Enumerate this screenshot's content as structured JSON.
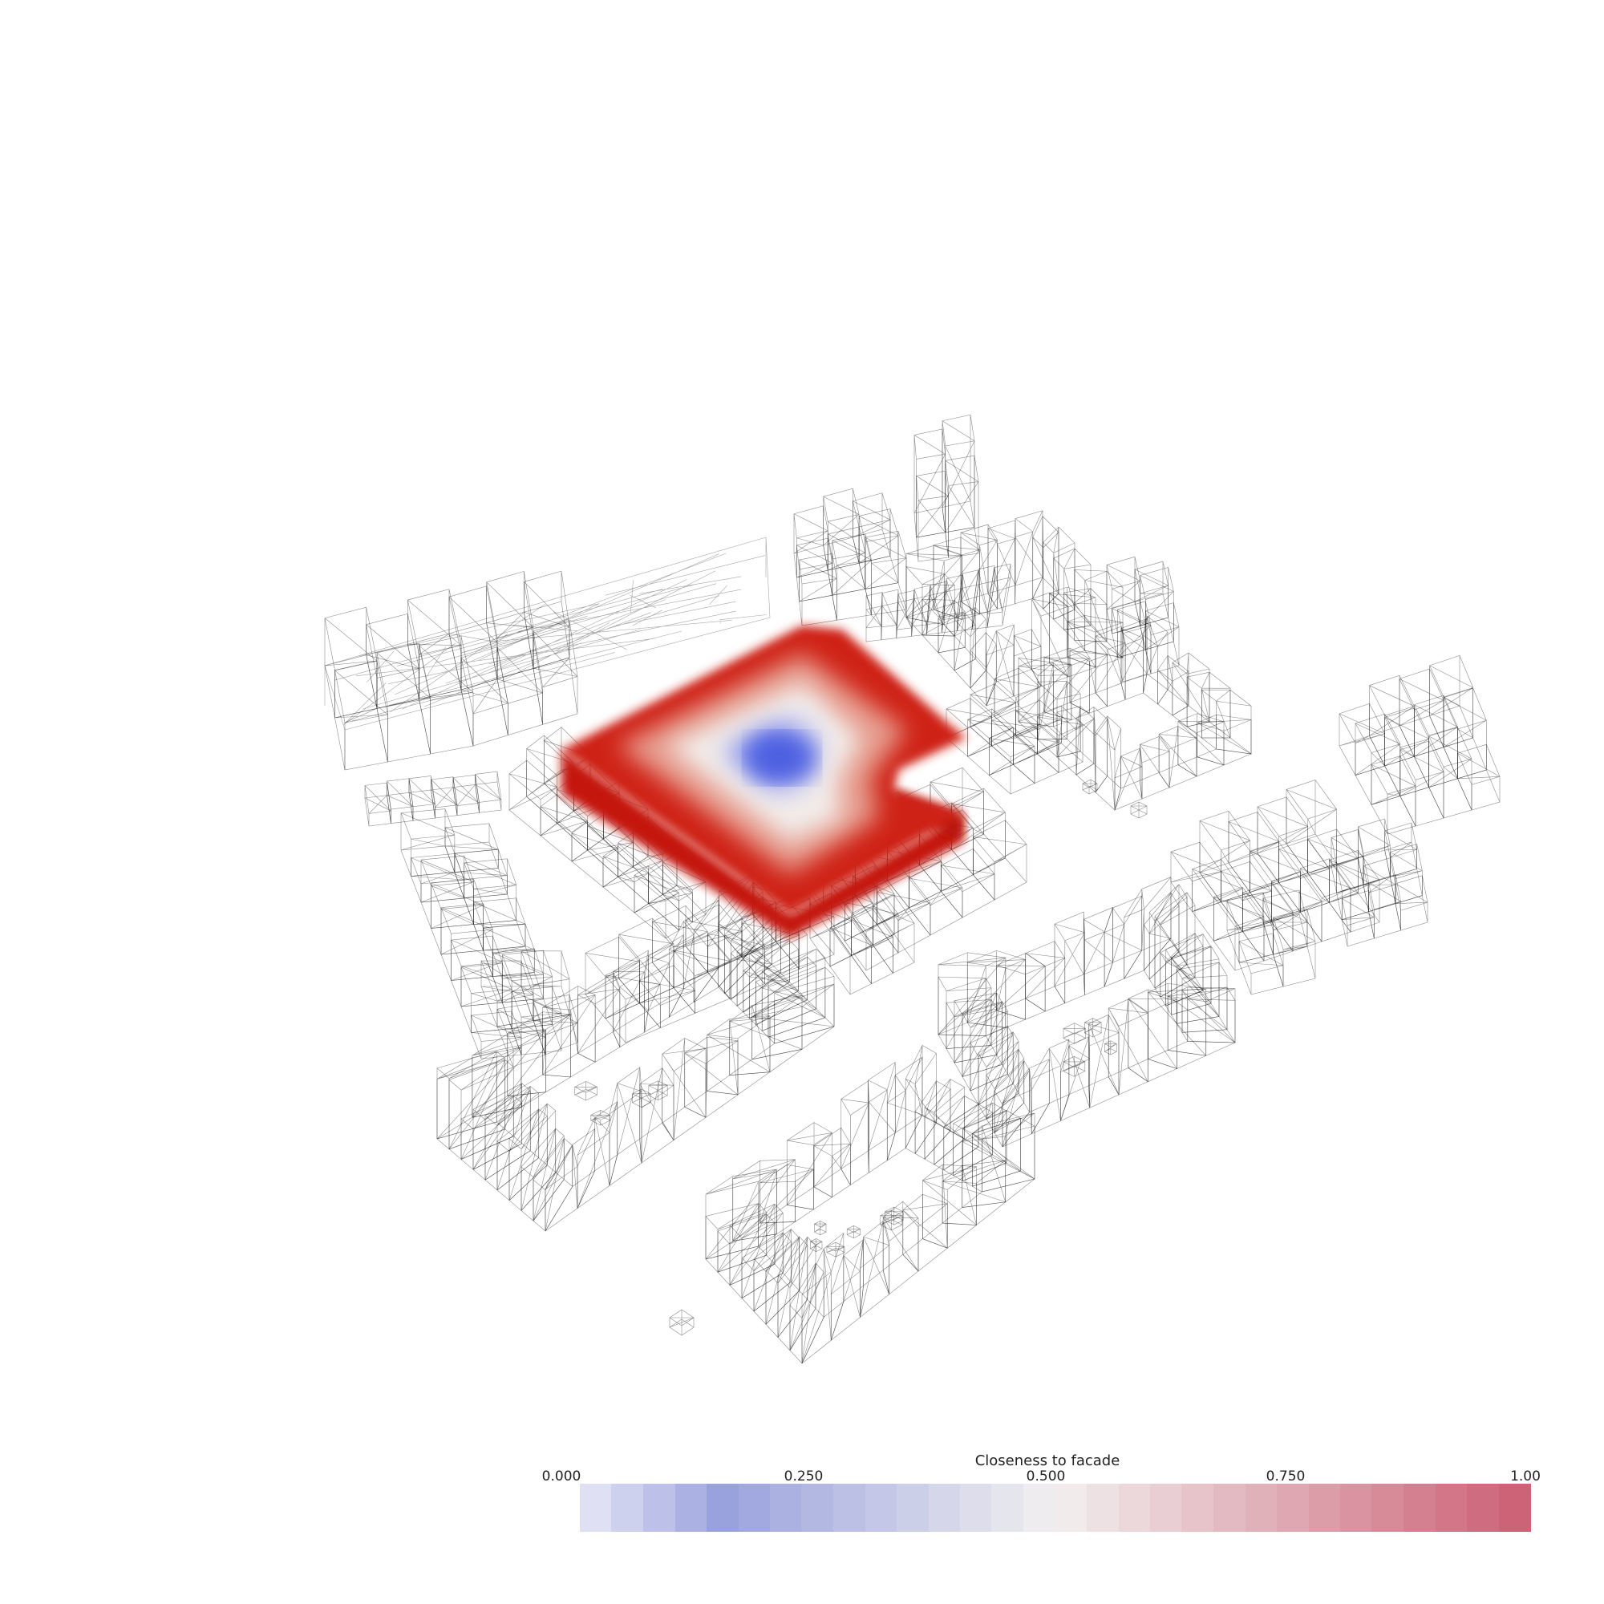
{
  "legend": {
    "title": "Closeness to facade",
    "ticks": [
      "0.000",
      "0.250",
      "0.500",
      "0.750",
      "1.00"
    ],
    "range": [
      0,
      1
    ],
    "colormap": "coolwarm",
    "colors": {
      "low": "#3b4cc0",
      "mid": "#f2f0f0",
      "high": "#b40426"
    },
    "opacity": 0.7,
    "bands": 30
  },
  "scene": {
    "highlight_color": "#cc1a12",
    "core_color": "#4a5de0",
    "wire_color": "#000000"
  }
}
